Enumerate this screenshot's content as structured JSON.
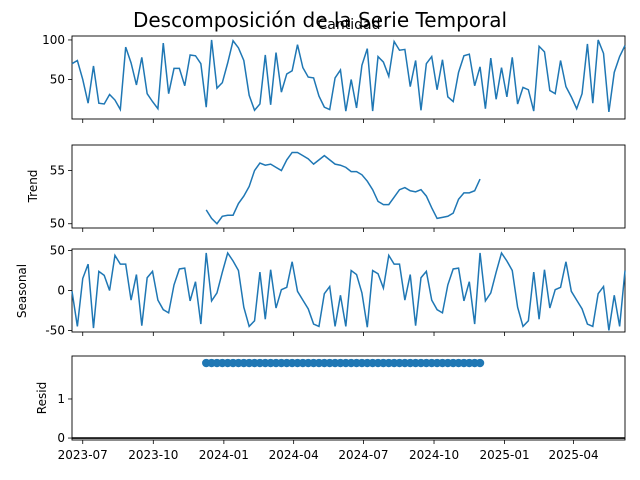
{
  "figure": {
    "title": "Descomposición de la Serie Temporal",
    "line_color": "#1f77b4",
    "baseline_color": "#000000"
  },
  "chart_data": [
    {
      "type": "line",
      "title": "Cantidad",
      "ylabel": "",
      "x_range": [
        "2023-06-17",
        "2025-06-07"
      ],
      "ylim": [
        0,
        105
      ],
      "yticks": [
        50,
        100
      ],
      "start_date": "2023-06-17",
      "freq_days": 7,
      "values": [
        70,
        74,
        50,
        20,
        67,
        20,
        19,
        31,
        24,
        12,
        91,
        71,
        43,
        78,
        32,
        22,
        13,
        96,
        32,
        64,
        64,
        42,
        81,
        80,
        70,
        15,
        100,
        39,
        46,
        71,
        99,
        90,
        74,
        30,
        11,
        19,
        81,
        18,
        84,
        34,
        57,
        61,
        94,
        65,
        53,
        52,
        29,
        15,
        12,
        52,
        62,
        10,
        50,
        14,
        68,
        89,
        10,
        79,
        72,
        54,
        98,
        87,
        88,
        41,
        74,
        11,
        70,
        79,
        37,
        75,
        28,
        22,
        59,
        80,
        82,
        42,
        66,
        13,
        77,
        25,
        65,
        28,
        78,
        19,
        40,
        37,
        10,
        92,
        85,
        36,
        32,
        74,
        41,
        28,
        13,
        32,
        95,
        20,
        100,
        83,
        9,
        59,
        79,
        93
      ],
      "grid": false
    },
    {
      "type": "line",
      "title": "",
      "ylabel": "Trend",
      "ylim": [
        49.6,
        57.4
      ],
      "yticks": [
        50,
        55
      ],
      "start_date": "2023-12-09",
      "freq_days": 7,
      "values": [
        51.3,
        50.5,
        50.0,
        50.7,
        50.8,
        50.8,
        51.9,
        52.6,
        53.5,
        55.0,
        55.7,
        55.5,
        55.6,
        55.3,
        55.0,
        56.0,
        56.7,
        56.7,
        56.4,
        56.1,
        55.6,
        56.0,
        56.4,
        56.0,
        55.6,
        55.5,
        55.3,
        54.9,
        54.9,
        54.6,
        54.0,
        53.2,
        52.1,
        51.8,
        51.8,
        52.5,
        53.2,
        53.4,
        53.1,
        53.0,
        53.2,
        52.6,
        51.5,
        50.5,
        50.6,
        50.7,
        51.0,
        52.3,
        52.9,
        52.9,
        53.1,
        54.2
      ],
      "grid": false
    },
    {
      "type": "line",
      "title": "",
      "ylabel": "Seasonal",
      "ylim": [
        -52,
        52
      ],
      "yticks": [
        -50,
        0,
        50
      ],
      "start_date": "2023-06-17",
      "freq_days": 7,
      "values": [
        -1,
        -45,
        15,
        33,
        -47,
        24,
        19,
        0,
        44,
        33,
        33,
        -12,
        20,
        -44,
        16,
        24,
        -12,
        -24,
        -28,
        7,
        27,
        28,
        -13,
        11,
        -42,
        47,
        -13,
        -3,
        23,
        47,
        37,
        25,
        -21,
        -45,
        -38,
        23,
        -36,
        26,
        -22,
        1,
        4,
        36,
        -1,
        -12,
        -23,
        -42,
        -45,
        -4,
        5,
        -45,
        -6,
        -45,
        25,
        20,
        -3,
        -46,
        25,
        21,
        3,
        44,
        33,
        33,
        -12,
        20,
        -44,
        16,
        24,
        -12,
        -24,
        -28,
        7,
        27,
        28,
        -13,
        11,
        -42,
        47,
        -13,
        -3,
        23,
        47,
        37,
        25,
        -21,
        -45,
        -38,
        23,
        -36,
        26,
        -22,
        1,
        4,
        36,
        -1,
        -12,
        -23,
        -42,
        -45,
        -4,
        5,
        -50,
        -6,
        -45,
        25
      ],
      "grid": false
    },
    {
      "type": "scatter",
      "title": "",
      "ylabel": "Resid",
      "ylim": [
        -0.05,
        2.1
      ],
      "yticks": [
        0,
        1
      ],
      "start_date": "2023-12-09",
      "freq_days": 7,
      "count": 52,
      "values_all": 1.92,
      "baseline": 0,
      "xticks": [
        "2023-07",
        "2023-10",
        "2024-01",
        "2024-04",
        "2024-07",
        "2024-10",
        "2025-01",
        "2025-04"
      ],
      "grid": false
    }
  ]
}
